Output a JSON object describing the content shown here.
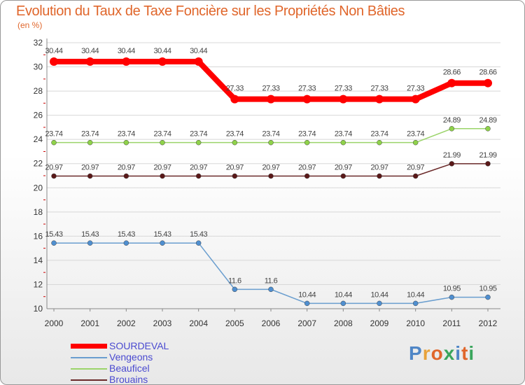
{
  "chart_data": {
    "type": "line",
    "title": "Evolution du Taux de Taxe Foncière sur les Propriétés Non Bâties",
    "ylabel": "(en %)",
    "xlabel": "",
    "ylim": [
      10,
      32
    ],
    "yticks": [
      10,
      12,
      14,
      16,
      18,
      20,
      22,
      24,
      26,
      28,
      30,
      32
    ],
    "categories": [
      "2000",
      "2001",
      "2002",
      "2003",
      "2004",
      "2005",
      "2006",
      "2007",
      "2008",
      "2009",
      "2010",
      "2011",
      "2012"
    ],
    "series": [
      {
        "name": "SOURDEVAL",
        "color": "#ff0000",
        "values": [
          30.44,
          30.44,
          30.44,
          30.44,
          30.44,
          27.33,
          27.33,
          27.33,
          27.33,
          27.33,
          27.33,
          28.66,
          28.66
        ],
        "labels": [
          "30.44",
          "30.44",
          "30.44",
          "30.44",
          "30.44",
          "27.33",
          "27.33",
          "27.33",
          "27.33",
          "27.33",
          "27.33",
          "28.66",
          "28.66"
        ]
      },
      {
        "name": "Vengeons",
        "color": "#6a9ecf",
        "values": [
          15.43,
          15.43,
          15.43,
          15.43,
          15.43,
          11.6,
          11.6,
          10.44,
          10.44,
          10.44,
          10.44,
          10.95,
          10.95
        ],
        "labels": [
          "15.43",
          "15.43",
          "15.43",
          "15.43",
          "15.43",
          "11.6",
          "11.6",
          "10.44",
          "10.44",
          "10.44",
          "10.44",
          "10.95",
          "10.95"
        ]
      },
      {
        "name": "Beauficel",
        "color": "#9bd46a",
        "values": [
          23.74,
          23.74,
          23.74,
          23.74,
          23.74,
          23.74,
          23.74,
          23.74,
          23.74,
          23.74,
          23.74,
          24.89,
          24.89
        ],
        "labels": [
          "23.74",
          "23.74",
          "23.74",
          "23.74",
          "23.74",
          "23.74",
          "23.74",
          "23.74",
          "23.74",
          "23.74",
          "23.74",
          "24.89",
          "24.89"
        ]
      },
      {
        "name": "Brouains",
        "color": "#6b2a2a",
        "values": [
          20.97,
          20.97,
          20.97,
          20.97,
          20.97,
          20.97,
          20.97,
          20.97,
          20.97,
          20.97,
          20.97,
          21.99,
          21.99
        ],
        "labels": [
          "20.97",
          "20.97",
          "20.97",
          "20.97",
          "20.97",
          "20.97",
          "20.97",
          "20.97",
          "20.97",
          "20.97",
          "20.97",
          "21.99",
          "21.99"
        ]
      }
    ]
  },
  "logo": {
    "chars": [
      "P",
      "r",
      "o",
      "x",
      "i",
      "t",
      "i"
    ],
    "colors": [
      "#4f86c6",
      "#e8a23a",
      "#e0662b",
      "#3aa55c",
      "#4f86c6",
      "#e0662b",
      "#3aa55c"
    ]
  }
}
